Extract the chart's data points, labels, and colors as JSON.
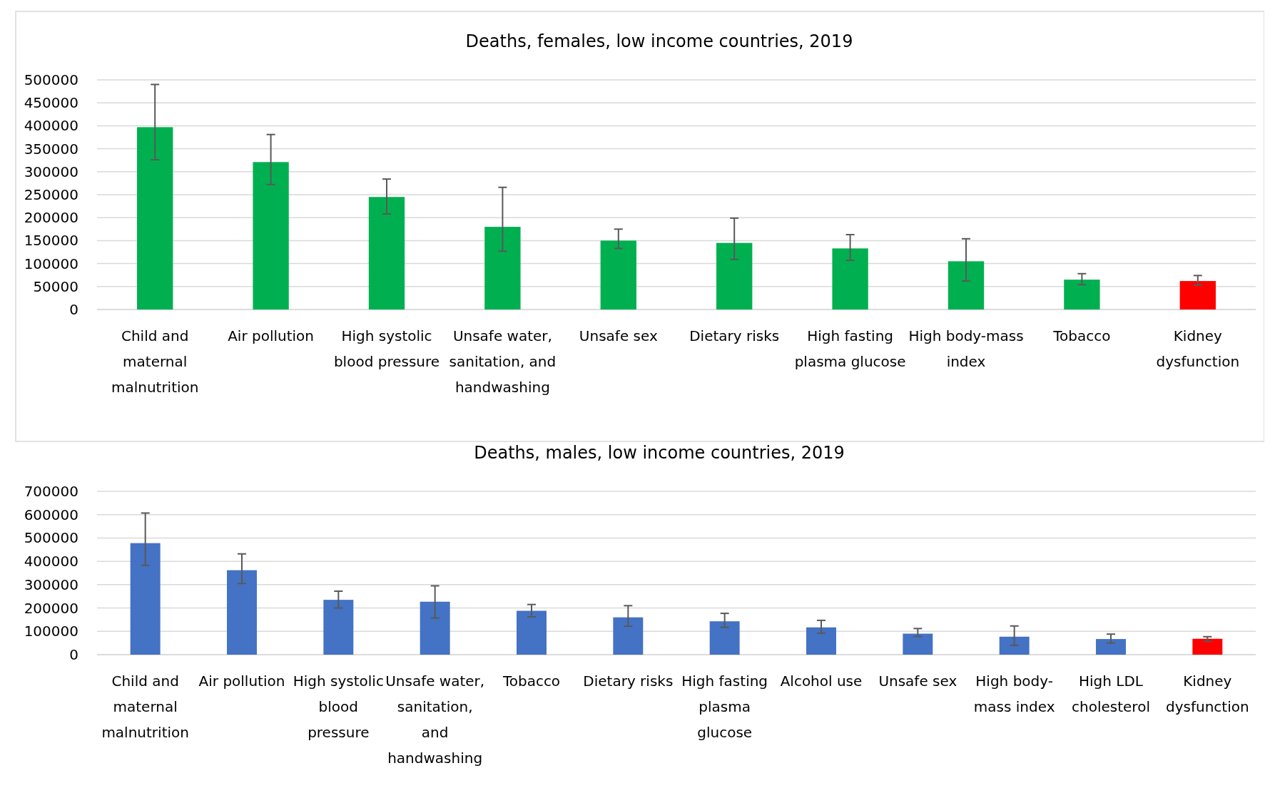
{
  "chart_data": [
    {
      "type": "bar",
      "title": "Deaths, females, low income countries, 2019",
      "categories": [
        "Child and maternal malnutrition",
        "Air pollution",
        "High systolic blood pressure",
        "Unsafe water, sanitation, and handwashing",
        "Unsafe sex",
        "Dietary risks",
        "High fasting plasma glucose",
        "High body-mass index",
        "Tobacco",
        "Kidney dysfunction"
      ],
      "values": [
        397000,
        321000,
        245000,
        180000,
        150000,
        145000,
        133000,
        105000,
        65000,
        62000
      ],
      "errors": [
        [
          326000,
          490000
        ],
        [
          272000,
          381000
        ],
        [
          208000,
          284000
        ],
        [
          127000,
          266000
        ],
        [
          133000,
          175000
        ],
        [
          109000,
          199000
        ],
        [
          107000,
          163000
        ],
        [
          62000,
          154000
        ],
        [
          54000,
          78000
        ],
        [
          53000,
          74000
        ]
      ],
      "colors": [
        "#00b050",
        "#00b050",
        "#00b050",
        "#00b050",
        "#00b050",
        "#00b050",
        "#00b050",
        "#00b050",
        "#00b050",
        "#ff0000"
      ],
      "ylim": [
        0,
        500000
      ],
      "yticks": [
        0,
        50000,
        100000,
        150000,
        200000,
        250000,
        300000,
        350000,
        400000,
        450000,
        500000
      ],
      "grid": "y"
    },
    {
      "type": "bar",
      "title": "Deaths, males, low income countries, 2019",
      "categories": [
        "Child and maternal malnutrition",
        "Air pollution",
        "High systolic blood pressure",
        "Unsafe water, sanitation, and handwashing",
        "Tobacco",
        "Dietary risks",
        "High fasting plasma glucose",
        "Alcohol use",
        "Unsafe sex",
        "High body-mass index",
        "High LDL cholesterol",
        "Kidney dysfunction"
      ],
      "values": [
        478000,
        362000,
        235000,
        227000,
        188000,
        160000,
        143000,
        117000,
        90000,
        77000,
        67000,
        68000
      ],
      "errors": [
        [
          383000,
          607000
        ],
        [
          305000,
          432000
        ],
        [
          200000,
          272000
        ],
        [
          157000,
          295000
        ],
        [
          162000,
          215000
        ],
        [
          122000,
          210000
        ],
        [
          117000,
          177000
        ],
        [
          92000,
          147000
        ],
        [
          78000,
          112000
        ],
        [
          40000,
          123000
        ],
        [
          50000,
          88000
        ],
        [
          57000,
          77000
        ]
      ],
      "colors": [
        "#4472c4",
        "#4472c4",
        "#4472c4",
        "#4472c4",
        "#4472c4",
        "#4472c4",
        "#4472c4",
        "#4472c4",
        "#4472c4",
        "#4472c4",
        "#4472c4",
        "#ff0000"
      ],
      "ylim": [
        0,
        700000
      ],
      "yticks": [
        0,
        100000,
        200000,
        300000,
        400000,
        500000,
        600000,
        700000
      ],
      "grid": "y"
    }
  ]
}
